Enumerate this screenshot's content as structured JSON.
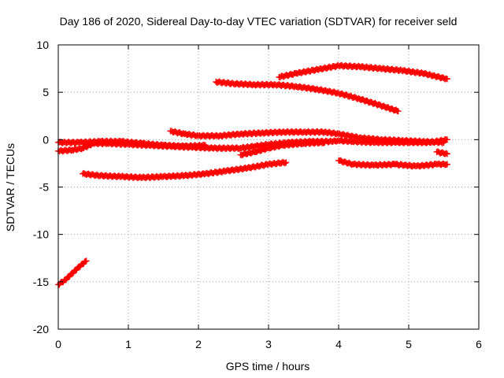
{
  "chart_data": {
    "type": "scatter",
    "title": "Day 186 of 2020, Sidereal Day-to-day VTEC variation (SDTVAR) for receiver seld",
    "xlabel": "GPS time / hours",
    "ylabel": "SDTVAR / TECUs",
    "xlim": [
      0,
      6
    ],
    "ylim": [
      -20,
      10
    ],
    "x_ticks": [
      0,
      1,
      2,
      3,
      4,
      5,
      6
    ],
    "y_ticks": [
      -20,
      -15,
      -10,
      -5,
      0,
      5,
      10
    ],
    "grid": true,
    "legend": "none",
    "marker": "plus",
    "series_color": "#ff0000",
    "series": [
      {
        "x": [
          0.0,
          0.1,
          0.2,
          0.3,
          0.4
        ],
        "y": [
          -15.3,
          -14.8,
          -14.1,
          -13.4,
          -12.8
        ]
      },
      {
        "x": [
          0.0,
          0.2,
          0.35,
          0.5,
          0.7,
          1.0,
          1.3,
          1.6,
          1.9,
          2.2,
          2.6,
          2.8,
          3.0,
          3.3,
          3.6,
          3.9,
          4.0,
          4.2,
          4.5,
          4.8,
          5.0,
          5.3,
          5.55
        ],
        "y": [
          -1.2,
          -1.1,
          -0.9,
          -0.4,
          -0.4,
          -0.5,
          -0.6,
          -0.7,
          -0.8,
          -0.9,
          -0.9,
          -0.7,
          -0.5,
          -0.3,
          -0.2,
          -0.2,
          -0.1,
          -0.2,
          -0.3,
          -0.3,
          -0.3,
          -0.3,
          0.0
        ]
      },
      {
        "x": [
          0.0,
          0.3,
          0.6,
          0.9,
          1.2,
          1.5,
          1.8,
          2.1
        ],
        "y": [
          -0.3,
          -0.3,
          -0.2,
          -0.2,
          -0.4,
          -0.6,
          -0.7,
          -0.6
        ]
      },
      {
        "x": [
          0.35,
          0.6,
          0.9,
          1.2,
          1.5,
          1.8,
          2.1,
          2.4,
          2.7,
          3.0,
          3.25
        ],
        "y": [
          -3.6,
          -3.8,
          -3.9,
          -4.0,
          -3.9,
          -3.8,
          -3.6,
          -3.3,
          -3.0,
          -2.6,
          -2.4
        ]
      },
      {
        "x": [
          1.6,
          1.8,
          2.0,
          2.3,
          2.6,
          2.9,
          3.2,
          3.5,
          3.8,
          4.0,
          4.3,
          4.6,
          4.9,
          5.2,
          5.5
        ],
        "y": [
          0.9,
          0.6,
          0.4,
          0.4,
          0.6,
          0.7,
          0.8,
          0.8,
          0.8,
          0.6,
          0.2,
          0.0,
          -0.1,
          -0.2,
          -0.3
        ]
      },
      {
        "x": [
          2.6,
          2.8,
          3.0,
          3.2,
          3.5,
          3.8
        ],
        "y": [
          -1.6,
          -1.3,
          -0.9,
          -0.6,
          -0.4,
          -0.3
        ]
      },
      {
        "x": [
          2.25,
          2.5,
          2.8,
          3.1,
          3.4,
          3.7,
          4.0,
          4.3,
          4.6,
          4.85
        ],
        "y": [
          6.1,
          5.9,
          5.8,
          5.8,
          5.6,
          5.3,
          4.9,
          4.3,
          3.6,
          3.0
        ]
      },
      {
        "x": [
          3.15,
          3.4,
          3.7,
          4.0,
          4.3,
          4.6,
          4.9,
          5.2,
          5.55
        ],
        "y": [
          6.6,
          7.0,
          7.4,
          7.8,
          7.7,
          7.5,
          7.3,
          7.0,
          6.4
        ]
      },
      {
        "x": [
          4.0,
          4.2,
          4.5,
          4.8,
          5.1,
          5.4,
          5.55
        ],
        "y": [
          -2.2,
          -2.6,
          -2.7,
          -2.6,
          -2.8,
          -2.6,
          -2.6
        ]
      },
      {
        "x": [
          5.4,
          5.55
        ],
        "y": [
          -1.3,
          -1.5
        ]
      }
    ]
  }
}
